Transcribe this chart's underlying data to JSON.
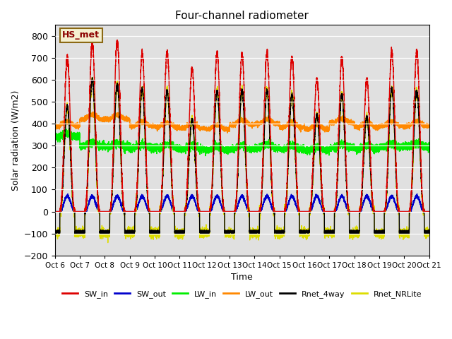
{
  "title": "Four-channel radiometer",
  "xlabel": "Time",
  "ylabel": "Solar radiation (W/m2)",
  "ylim": [
    -200,
    850
  ],
  "xlim": [
    0,
    15
  ],
  "x_tick_labels": [
    "Oct 6",
    "Oct 7",
    "Oct 8",
    "Oct 9",
    "Oct 10",
    "Oct 11",
    "Oct 12",
    "Oct 13",
    "Oct 14",
    "Oct 15",
    "Oct 16",
    "Oct 17",
    "Oct 18",
    "Oct 19",
    "Oct 20",
    "Oct 21"
  ],
  "legend_label": "HS_met",
  "legend_box_color": "#f5f0d0",
  "legend_box_edge": "#8b6914",
  "background_color": "#e0e0e0",
  "lines": {
    "SW_in": {
      "color": "#dd0000",
      "lw": 1.0
    },
    "SW_out": {
      "color": "#0000cc",
      "lw": 1.0
    },
    "LW_in": {
      "color": "#00ee00",
      "lw": 1.2
    },
    "LW_out": {
      "color": "#ff8800",
      "lw": 1.2
    },
    "Rnet_4way": {
      "color": "#000000",
      "lw": 1.0
    },
    "Rnet_NRLite": {
      "color": "#dddd00",
      "lw": 1.0
    }
  },
  "yticks": [
    -200,
    -100,
    0,
    100,
    200,
    300,
    400,
    500,
    600,
    700,
    800
  ],
  "day_peaks_sw": [
    700,
    770,
    775,
    720,
    725,
    650,
    720,
    715,
    720,
    700,
    605,
    700,
    600,
    725,
    730
  ],
  "day_peaks_rnet": [
    480,
    600,
    580,
    560,
    550,
    420,
    550,
    550,
    550,
    530,
    440,
    530,
    430,
    560,
    550
  ],
  "day_peaks_lw_out": [
    390,
    420,
    420,
    390,
    385,
    380,
    375,
    395,
    400,
    385,
    375,
    405,
    385,
    390,
    390
  ],
  "day_base_lw_in": [
    340,
    300,
    295,
    290,
    290,
    285,
    280,
    285,
    290,
    285,
    280,
    290,
    285,
    295,
    295
  ],
  "n_days": 15,
  "pts_per_day": 500
}
